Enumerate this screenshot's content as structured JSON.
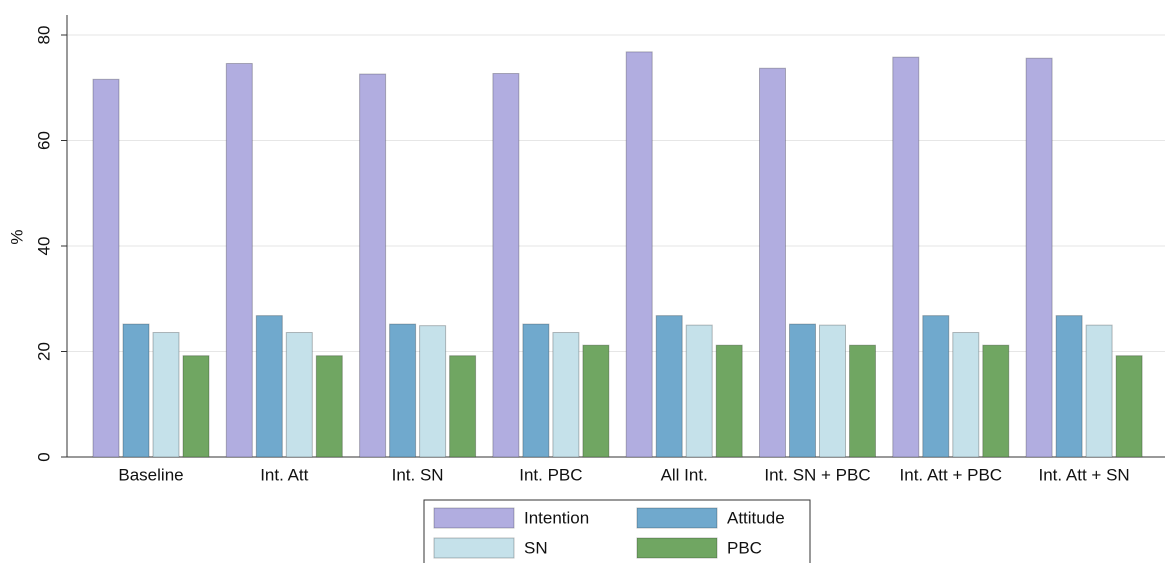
{
  "chart_data": {
    "type": "bar",
    "categories": [
      "Baseline",
      "Int. Att",
      "Int. SN",
      "Int. PBC",
      "All Int.",
      "Int. SN + PBC",
      "Int. Att + PBC",
      "Int. Att + SN"
    ],
    "series": [
      {
        "name": "Intention",
        "color": "#b1ade0",
        "values": [
          71.6,
          74.6,
          72.6,
          72.7,
          76.8,
          73.7,
          75.8,
          75.6
        ]
      },
      {
        "name": "Attitude",
        "color": "#70a9cd",
        "values": [
          25.2,
          26.8,
          25.2,
          25.2,
          26.8,
          25.2,
          26.8,
          26.8
        ]
      },
      {
        "name": "SN",
        "color": "#c5e1ea",
        "values": [
          23.6,
          23.6,
          24.9,
          23.6,
          25.0,
          25.0,
          23.6,
          25.0
        ]
      },
      {
        "name": "PBC",
        "color": "#70a662",
        "values": [
          19.2,
          19.2,
          19.2,
          21.2,
          21.2,
          21.2,
          21.2,
          19.2
        ]
      }
    ],
    "ylabel": "%",
    "ylim": [
      0,
      80
    ],
    "yticks": [
      0,
      20,
      40,
      60,
      80
    ],
    "grid": true,
    "legend": "bottom"
  }
}
